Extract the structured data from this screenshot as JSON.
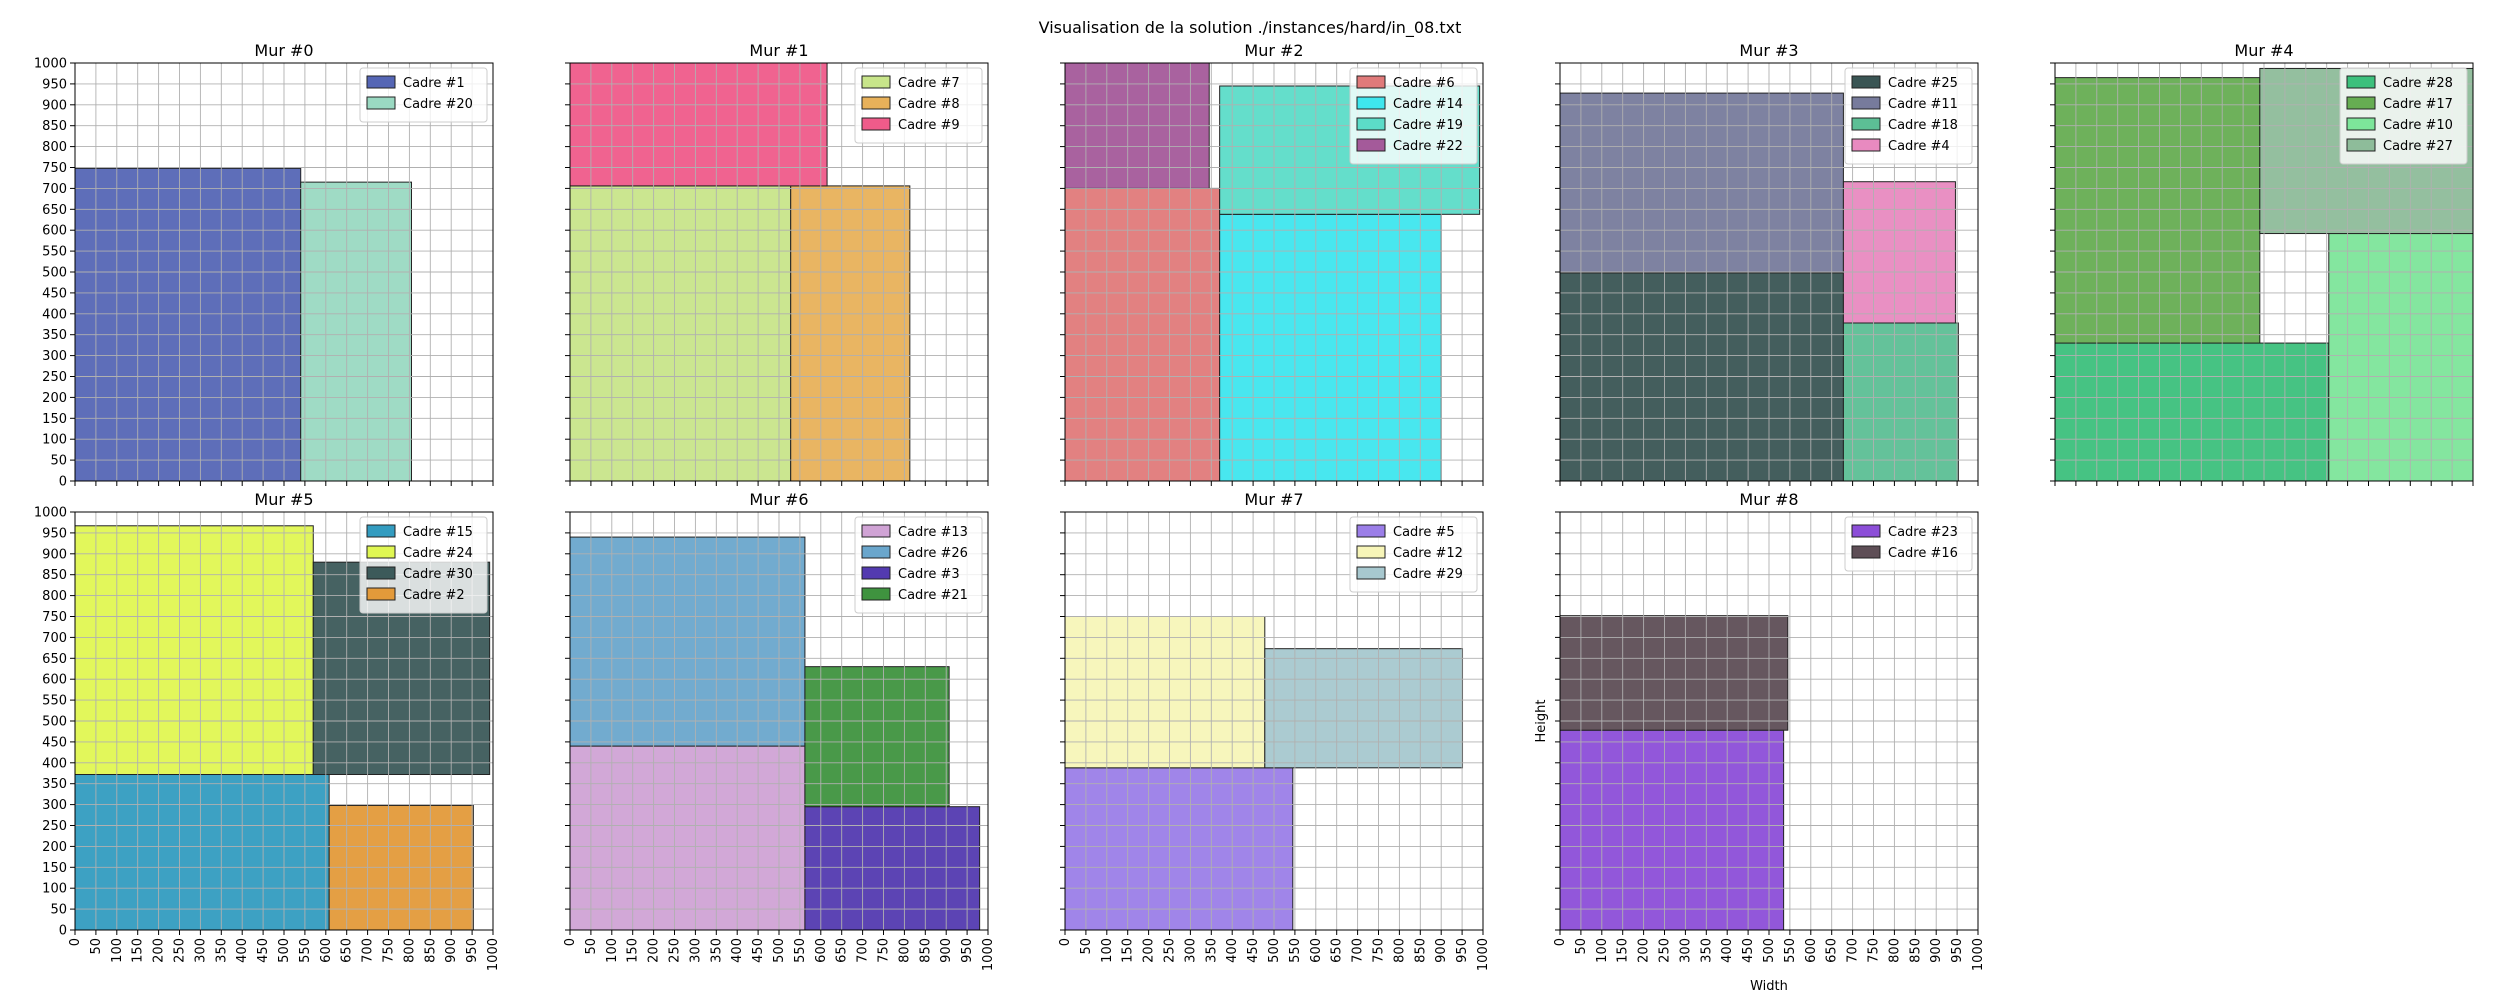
{
  "figure": {
    "suptitle": "Visualisation de la solution ./instances/hard/in_08.txt",
    "xlabel": "Width",
    "ylabel": "Height"
  },
  "chart_data": [
    {
      "type": "rectangles",
      "title": "Mur #0",
      "xlim": [
        0,
        1000
      ],
      "ylim": [
        0,
        1000
      ],
      "grid": true,
      "legend": "top-right",
      "rects": [
        {
          "name": "Cadre #1",
          "x": 0,
          "y": 0,
          "w": 540,
          "h": 748,
          "color": "#5566b5"
        },
        {
          "name": "Cadre #20",
          "x": 540,
          "y": 0,
          "w": 265,
          "h": 715,
          "color": "#9ad9c2"
        }
      ]
    },
    {
      "type": "rectangles",
      "title": "Mur #1",
      "xlim": [
        0,
        1000
      ],
      "ylim": [
        0,
        1000
      ],
      "grid": true,
      "legend": "top-right",
      "rects": [
        {
          "name": "Cadre #7",
          "x": 0,
          "y": 0,
          "w": 528,
          "h": 706,
          "color": "#c8e58a"
        },
        {
          "name": "Cadre #8",
          "x": 528,
          "y": 0,
          "w": 285,
          "h": 706,
          "color": "#e8b15a"
        },
        {
          "name": "Cadre #9",
          "x": 0,
          "y": 706,
          "w": 615,
          "h": 294,
          "color": "#ef5b8a"
        }
      ]
    },
    {
      "type": "rectangles",
      "title": "Mur #2",
      "xlim": [
        0,
        1000
      ],
      "ylim": [
        0,
        1000
      ],
      "grid": true,
      "legend": "top-right",
      "rects": [
        {
          "name": "Cadre #6",
          "x": 0,
          "y": 0,
          "w": 370,
          "h": 700,
          "color": "#e07a7a"
        },
        {
          "name": "Cadre #14",
          "x": 370,
          "y": 0,
          "w": 530,
          "h": 638,
          "color": "#3ee6ee"
        },
        {
          "name": "Cadre #19",
          "x": 370,
          "y": 638,
          "w": 622,
          "h": 307,
          "color": "#5cdcc8"
        },
        {
          "name": "Cadre #22",
          "x": 0,
          "y": 700,
          "w": 345,
          "h": 300,
          "color": "#a45a9a"
        }
      ]
    },
    {
      "type": "rectangles",
      "title": "Mur #3",
      "xlim": [
        0,
        1000
      ],
      "ylim": [
        0,
        1000
      ],
      "grid": true,
      "legend": "top-right",
      "rects": [
        {
          "name": "Cadre #25",
          "x": 0,
          "y": 0,
          "w": 678,
          "h": 498,
          "color": "#3a5554"
        },
        {
          "name": "Cadre #11",
          "x": 0,
          "y": 498,
          "w": 678,
          "h": 430,
          "color": "#777b9c"
        },
        {
          "name": "Cadre #18",
          "x": 678,
          "y": 0,
          "w": 275,
          "h": 378,
          "color": "#5cbf95"
        },
        {
          "name": "Cadre #4",
          "x": 678,
          "y": 378,
          "w": 268,
          "h": 338,
          "color": "#e88ac0"
        }
      ]
    },
    {
      "type": "rectangles",
      "title": "Mur #4",
      "xlim": [
        0,
        1000
      ],
      "ylim": [
        0,
        1000
      ],
      "grid": true,
      "legend": "top-right",
      "rects": [
        {
          "name": "Cadre #28",
          "x": 0,
          "y": 0,
          "w": 655,
          "h": 330,
          "color": "#3cc07c"
        },
        {
          "name": "Cadre #17",
          "x": 0,
          "y": 330,
          "w": 490,
          "h": 635,
          "color": "#66ad52"
        },
        {
          "name": "Cadre #10",
          "x": 655,
          "y": 0,
          "w": 345,
          "h": 592,
          "color": "#7de59a"
        },
        {
          "name": "Cadre #27",
          "x": 490,
          "y": 592,
          "w": 510,
          "h": 395,
          "color": "#8ebc9a"
        }
      ]
    },
    {
      "type": "rectangles",
      "title": "Mur #5",
      "xlim": [
        0,
        1000
      ],
      "ylim": [
        0,
        1000
      ],
      "grid": true,
      "legend": "top-right",
      "rects": [
        {
          "name": "Cadre #15",
          "x": 0,
          "y": 0,
          "w": 608,
          "h": 372,
          "color": "#339cc0"
        },
        {
          "name": "Cadre #24",
          "x": 0,
          "y": 372,
          "w": 570,
          "h": 595,
          "color": "#e0f752"
        },
        {
          "name": "Cadre #30",
          "x": 570,
          "y": 372,
          "w": 422,
          "h": 508,
          "color": "#3c5a5a"
        },
        {
          "name": "Cadre #2",
          "x": 608,
          "y": 0,
          "w": 345,
          "h": 298,
          "color": "#e39a3a"
        }
      ]
    },
    {
      "type": "rectangles",
      "title": "Mur #6",
      "xlim": [
        0,
        1000
      ],
      "ylim": [
        0,
        1000
      ],
      "grid": true,
      "legend": "top-right",
      "rects": [
        {
          "name": "Cadre #13",
          "x": 0,
          "y": 0,
          "w": 562,
          "h": 440,
          "color": "#d0a3d5"
        },
        {
          "name": "Cadre #26",
          "x": 0,
          "y": 440,
          "w": 562,
          "h": 500,
          "color": "#6aa6cc"
        },
        {
          "name": "Cadre #3",
          "x": 562,
          "y": 0,
          "w": 418,
          "h": 295,
          "color": "#533ab0"
        },
        {
          "name": "Cadre #21",
          "x": 562,
          "y": 295,
          "w": 345,
          "h": 335,
          "color": "#3f933f"
        }
      ]
    },
    {
      "type": "rectangles",
      "title": "Mur #7",
      "xlim": [
        0,
        1000
      ],
      "ylim": [
        0,
        1000
      ],
      "grid": true,
      "legend": "top-right",
      "rects": [
        {
          "name": "Cadre #5",
          "x": 0,
          "y": 0,
          "w": 545,
          "h": 388,
          "color": "#9b7ee8"
        },
        {
          "name": "Cadre #12",
          "x": 0,
          "y": 388,
          "w": 478,
          "h": 362,
          "color": "#f7f5b8"
        },
        {
          "name": "Cadre #29",
          "x": 478,
          "y": 388,
          "w": 473,
          "h": 285,
          "color": "#a7c8cf"
        }
      ]
    },
    {
      "type": "rectangles",
      "title": "Mur #8",
      "xlim": [
        0,
        1000
      ],
      "ylim": [
        0,
        1000
      ],
      "grid": true,
      "legend": "top-right",
      "rects": [
        {
          "name": "Cadre #23",
          "x": 0,
          "y": 0,
          "w": 535,
          "h": 478,
          "color": "#8c4ed8"
        },
        {
          "name": "Cadre #16",
          "x": 0,
          "y": 478,
          "w": 545,
          "h": 274,
          "color": "#5e4e56"
        }
      ]
    }
  ]
}
